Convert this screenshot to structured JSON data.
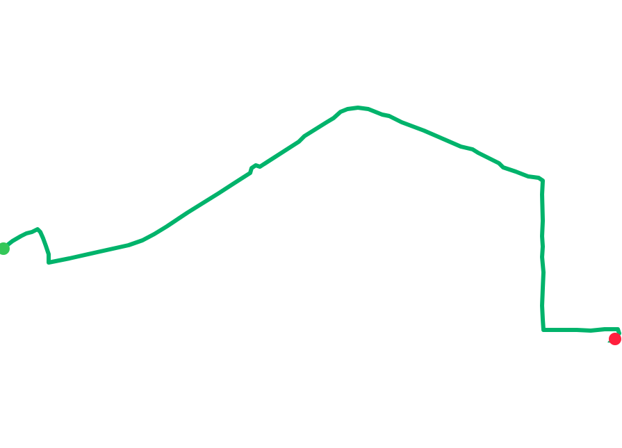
{
  "map": {
    "background_color": "#ffffff",
    "route": {
      "color": "#00b36b"
    },
    "start_marker": {
      "icon": "start-point-icon",
      "color": "#34c759"
    },
    "end_marker": {
      "icon": "end-point-icon",
      "color": "#ff1f3d"
    }
  }
}
